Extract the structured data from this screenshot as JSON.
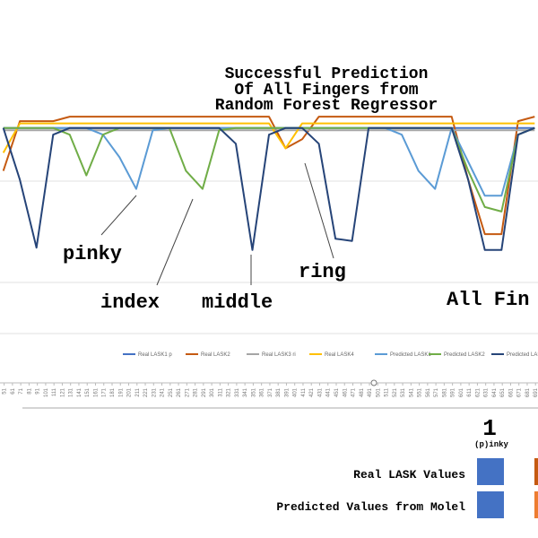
{
  "chart_data": {
    "type": "line",
    "title": [
      "Successful Prediction",
      "Of All Fingers from",
      "Random Forest Regressor"
    ],
    "annotations": [
      "pinky",
      "index",
      "middle",
      "ring",
      "All Fin"
    ],
    "x": [
      50,
      70,
      90,
      110,
      130,
      150,
      170,
      190,
      210,
      230,
      250,
      270,
      290,
      310,
      330,
      350,
      370,
      390,
      410,
      430,
      450,
      470,
      490,
      510,
      530,
      550,
      570,
      590,
      610,
      630,
      650,
      670,
      690
    ],
    "xlim": [
      46,
      694
    ],
    "xticks": [
      51,
      61,
      71,
      81,
      91,
      101,
      111,
      121,
      131,
      141,
      151,
      161,
      171,
      181,
      191,
      201,
      211,
      221,
      231,
      241,
      251,
      261,
      271,
      281,
      291,
      301,
      311,
      321,
      331,
      341,
      351,
      361,
      371,
      381,
      391,
      401,
      411,
      421,
      431,
      441,
      451,
      461,
      471,
      481,
      491,
      501,
      511,
      521,
      531,
      541,
      551,
      561,
      571,
      581,
      591,
      601,
      611,
      621,
      631,
      641,
      651,
      661,
      671,
      681,
      691
    ],
    "ylim": [
      0,
      100
    ],
    "series": [
      {
        "name": "Real LASK1 p",
        "color": "#4472c4",
        "values": [
          91,
          91,
          91,
          91,
          91,
          91,
          91,
          91,
          91,
          91,
          91,
          91,
          91,
          91,
          91,
          91,
          91,
          91,
          91,
          91,
          91,
          91,
          91,
          91,
          91,
          91,
          91,
          91,
          91,
          91,
          91,
          91,
          91
        ]
      },
      {
        "name": "Real LASK2",
        "color": "#c55a11",
        "values": [
          72,
          94,
          94,
          94,
          96,
          96,
          96,
          96,
          96,
          96,
          96,
          96,
          96,
          96,
          96,
          96,
          96,
          82,
          86,
          96,
          96,
          96,
          96,
          96,
          96,
          96,
          96,
          96,
          68,
          44,
          44,
          94,
          96
        ]
      },
      {
        "name": "Real LASK3 ri",
        "color": "#a5a5a5",
        "values": [
          90,
          90,
          90,
          90,
          90,
          90,
          90,
          90,
          90,
          90,
          90,
          90,
          90,
          90,
          90,
          90,
          90,
          90,
          90,
          90,
          90,
          90,
          90,
          90,
          90,
          90,
          90,
          90,
          90,
          90,
          90,
          90,
          90
        ]
      },
      {
        "name": "Real LASK4",
        "color": "#ffc000",
        "values": [
          80,
          93,
          93,
          93,
          93,
          93,
          93,
          93,
          93,
          93,
          93,
          93,
          93,
          93,
          93,
          93,
          93,
          82,
          93,
          93,
          93,
          93,
          93,
          93,
          93,
          93,
          93,
          93,
          93,
          93,
          93,
          93,
          93
        ]
      },
      {
        "name": "Predicted LASK1",
        "color": "#5b9bd5",
        "values": [
          91,
          91,
          91,
          91,
          91,
          91,
          88,
          78,
          64,
          90,
          91,
          91,
          91,
          91,
          91,
          91,
          91,
          91,
          91,
          91,
          91,
          91,
          91,
          91,
          88,
          72,
          64,
          91,
          76,
          61,
          61,
          88,
          91
        ]
      },
      {
        "name": "Predicted LASK2",
        "color": "#70ad47",
        "values": [
          91,
          91,
          91,
          91,
          88,
          70,
          88,
          91,
          91,
          91,
          91,
          72,
          64,
          90,
          91,
          91,
          91,
          91,
          91,
          91,
          91,
          91,
          91,
          91,
          91,
          91,
          91,
          91,
          72,
          56,
          54,
          88,
          91
        ]
      },
      {
        "name": "Predicted LASK",
        "color": "#264478",
        "values": [
          91,
          68,
          38,
          88,
          91,
          91,
          91,
          91,
          91,
          91,
          91,
          91,
          91,
          91,
          84,
          37,
          88,
          91,
          91,
          84,
          42,
          41,
          91,
          91,
          91,
          91,
          91,
          91,
          68,
          37,
          37,
          88,
          91
        ]
      }
    ]
  },
  "table": {
    "header": {
      "number": "1",
      "label": "(p)inky"
    },
    "rows": [
      {
        "label": "Real LASK Values"
      },
      {
        "label": "Predicted Values from Molel"
      }
    ]
  }
}
